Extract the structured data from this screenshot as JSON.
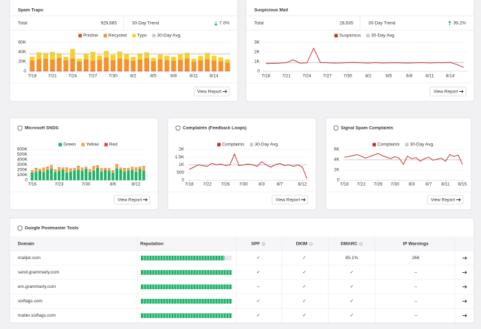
{
  "chart_data": [
    {
      "type": "bar",
      "title": "Spam Traps",
      "total_label": "Total",
      "total": "929,665",
      "trend_label": "30-Day Trend",
      "trend": "7.0%",
      "trend_direction": "down",
      "trend_color": "#1aa260",
      "button": "View Report",
      "categories": [
        "7/18",
        null,
        null,
        "7/21",
        null,
        null,
        "7/24",
        null,
        null,
        "7/27",
        null,
        null,
        "7/30",
        null,
        null,
        "8/2",
        null,
        null,
        "8/5",
        null,
        null,
        "8/8",
        null,
        null,
        "8/11",
        null,
        null,
        "8/14",
        null,
        null
      ],
      "series": [
        {
          "name": "Pristine",
          "color": "#e0453a",
          "values": [
            1200,
            1500,
            1100,
            1300,
            1600,
            1200,
            1400,
            1000,
            1300,
            1500,
            1200,
            1400,
            1100,
            1300,
            1200,
            1000,
            1400,
            1300,
            1100,
            1200,
            1300,
            1000,
            1200,
            1400,
            900,
            1100,
            1300,
            1200,
            1000,
            900
          ]
        },
        {
          "name": "Recycled",
          "color": "#f5922a",
          "values": [
            21000,
            24000,
            25000,
            23000,
            26000,
            22000,
            25000,
            19000,
            24000,
            21000,
            23000,
            27000,
            22000,
            25000,
            24000,
            21000,
            23000,
            26000,
            20000,
            24000,
            22000,
            21000,
            23000,
            25000,
            19000,
            22000,
            24000,
            21000,
            20000,
            17000
          ]
        },
        {
          "name": "Typo",
          "color": "#f8d020",
          "values": [
            8000,
            14000,
            12000,
            16000,
            10000,
            7000,
            20000,
            6000,
            12000,
            18000,
            9000,
            14000,
            11000,
            15000,
            10000,
            8000,
            13000,
            12000,
            7000,
            10000,
            9000,
            8000,
            11000,
            12000,
            6000,
            9000,
            13000,
            10000,
            8000,
            7000
          ]
        }
      ],
      "reference_line": {
        "name": "30-Day Avg.",
        "color": "#c8c8c8",
        "value": 36000
      },
      "ylim": [
        0,
        60000
      ],
      "yticks": [
        0,
        {
          "value": 20000,
          "label": "20K"
        },
        {
          "value": 40000,
          "label": "40K"
        },
        {
          "value": 60000,
          "label": "60K"
        }
      ],
      "grid": true
    },
    {
      "type": "line",
      "title": "Suspicious Mail",
      "total_label": "Total",
      "total": "28,835",
      "trend_label": "30-Day Trend",
      "trend": "39.2%",
      "trend_direction": "up",
      "trend_color": "#1aa260",
      "button": "View Report",
      "categories": [
        "7/18",
        null,
        null,
        "7/21",
        null,
        null,
        "7/24",
        null,
        null,
        "7/27",
        null,
        null,
        "7/30",
        null,
        null,
        "8/2",
        null,
        null,
        "8/5",
        null,
        null,
        "8/8",
        null,
        null,
        "8/11",
        null,
        null,
        "8/14",
        null,
        null
      ],
      "series": [
        {
          "name": "Suspicious",
          "color": "#c0302b",
          "values": [
            800,
            820,
            850,
            900,
            1200,
            850,
            870,
            2400,
            900,
            880,
            860,
            870,
            900,
            920,
            880,
            860,
            900,
            870,
            880,
            890,
            870,
            860,
            880,
            900,
            870,
            890,
            880,
            920,
            700,
            400
          ]
        }
      ],
      "reference_line": {
        "name": "30-Day Avg.",
        "color": "#c8c8c8",
        "value": 900
      },
      "ylim": [
        0,
        3000
      ],
      "yticks": [
        0,
        {
          "value": 1000,
          "label": "1K"
        },
        {
          "value": 2000,
          "label": "2K"
        },
        {
          "value": 3000,
          "label": "3K"
        }
      ],
      "grid": true
    },
    {
      "type": "bar",
      "title": "Microsoft SNDS",
      "button": "View Report",
      "categories": [
        "7/16",
        null,
        null,
        null,
        null,
        null,
        null,
        "7/23",
        null,
        null,
        null,
        null,
        null,
        null,
        "7/30",
        null,
        null,
        null,
        null,
        null,
        null,
        "8/6",
        null,
        null,
        null,
        null,
        null,
        "8/12",
        null,
        null
      ],
      "series": [
        {
          "name": "Green",
          "color": "#21b26a",
          "values": [
            150000,
            170000,
            180000,
            160000,
            200000,
            220000,
            160000,
            180000,
            210000,
            150000,
            170000,
            190000,
            200000,
            180000,
            220000,
            160000,
            190000,
            240000,
            170000,
            200000,
            180000,
            150000,
            230000,
            210000,
            170000,
            190000,
            200000,
            160000,
            220000,
            180000
          ]
        },
        {
          "name": "Yellow",
          "color": "#f0a64a",
          "values": [
            40000,
            60000,
            30000,
            80000,
            50000,
            70000,
            40000,
            60000,
            30000,
            90000,
            50000,
            40000,
            70000,
            60000,
            30000,
            50000,
            80000,
            40000,
            60000,
            30000,
            50000,
            40000,
            70000,
            30000,
            60000,
            40000,
            50000,
            80000,
            40000,
            90000
          ]
        },
        {
          "name": "Red",
          "color": "#d9473b",
          "values": [
            5000,
            10000,
            8000,
            5000,
            12000,
            6000,
            8000,
            10000,
            5000,
            7000,
            9000,
            6000,
            10000,
            5000,
            8000,
            6000,
            7000,
            9000,
            5000,
            8000,
            6000,
            7000,
            10000,
            5000,
            8000,
            6000,
            9000,
            7000,
            5000,
            8000
          ]
        }
      ],
      "ylim": [
        0,
        600000
      ],
      "yticks": [
        0,
        {
          "value": 100000,
          "label": "100K"
        },
        {
          "value": 200000,
          "label": "200K"
        },
        {
          "value": 300000,
          "label": "300K"
        },
        {
          "value": 400000,
          "label": "400K"
        },
        {
          "value": 500000,
          "label": "500K"
        },
        {
          "value": 600000,
          "label": "600K"
        }
      ],
      "grid": true
    },
    {
      "type": "line",
      "title": "Complaints (Feedback Loops)",
      "button": "View Report",
      "categories": [
        "7/18",
        null,
        null,
        null,
        "7/22",
        null,
        null,
        null,
        "7/26",
        null,
        null,
        null,
        "7/30",
        null,
        null,
        null,
        "8/3",
        null,
        null,
        null,
        "8/7",
        null,
        null,
        null,
        null,
        "8/12",
        null
      ],
      "series": [
        {
          "name": "Complaints",
          "color": "#c0302b",
          "values": [
            700,
            850,
            1000,
            950,
            900,
            1100,
            1000,
            1050,
            950,
            1000,
            1700,
            950,
            1000,
            1050,
            1000,
            900,
            1200,
            1000,
            850,
            1000,
            1100,
            950,
            1000,
            900,
            1000,
            850,
            100
          ]
        }
      ],
      "reference_line": {
        "name": "30-Day Avg.",
        "color": "#c8c8c8",
        "value": 1000
      },
      "ylim": [
        0,
        2000
      ],
      "yticks": [
        0,
        500,
        {
          "value": 1000,
          "label": "1K"
        },
        {
          "value": 1500,
          "label": "1.5K"
        },
        {
          "value": 2000,
          "label": "2K"
        }
      ],
      "grid": true
    },
    {
      "type": "line",
      "title": "Signal Spam Complaints",
      "button": "View Report",
      "categories": [
        "7/18",
        null,
        null,
        null,
        "7/22",
        null,
        null,
        null,
        "7/26",
        null,
        null,
        null,
        "7/30",
        null,
        null,
        null,
        "8/3",
        null,
        null,
        null,
        "8/7",
        null,
        null,
        null,
        "8/11",
        null,
        null,
        null,
        "8/15"
      ],
      "series": [
        {
          "name": "Complaints",
          "color": "#c0302b",
          "values": [
            4500,
            4600,
            4800,
            5000,
            4700,
            4300,
            4600,
            4900,
            5200,
            4800,
            4500,
            4200,
            4600,
            4300,
            3100,
            4700,
            4200,
            4400,
            3700,
            4200,
            4500,
            3900,
            4100,
            4300,
            3700,
            5000,
            4600,
            4900,
            3100
          ]
        }
      ],
      "reference_line": {
        "name": "30-Day Avg.",
        "color": "#c8c8c8",
        "value": 4000
      },
      "ylim": [
        0,
        6000
      ],
      "yticks": [
        0,
        {
          "value": 2000,
          "label": "2K"
        },
        {
          "value": 4000,
          "label": "4K"
        },
        {
          "value": 6000,
          "label": "6K"
        }
      ],
      "grid": true
    }
  ],
  "table": {
    "title": "Google Postmaster Tools",
    "columns": [
      "Domain",
      "Reputation",
      "SPF",
      "DKIM",
      "DMARC",
      "IP Warnings"
    ],
    "reputation_lim": [
      0,
      100
    ],
    "reputation_color": "#21b26a",
    "check_color": "#1aa260",
    "rows": [
      [
        "mailjet.com",
        92,
        "✓",
        "✓",
        "85.1%",
        266
      ],
      [
        "send.grammarly.com",
        100,
        "✓",
        "✓",
        "✓",
        "--"
      ],
      [
        "em.grammarly.com",
        100,
        "--",
        "✓",
        "✓",
        "--"
      ],
      [
        "sixflags.com",
        100,
        "✓",
        "✓",
        "✓",
        "--"
      ],
      [
        "mailer.sixflags.com",
        100,
        "✓",
        "✓",
        "✓",
        "--"
      ]
    ]
  }
}
